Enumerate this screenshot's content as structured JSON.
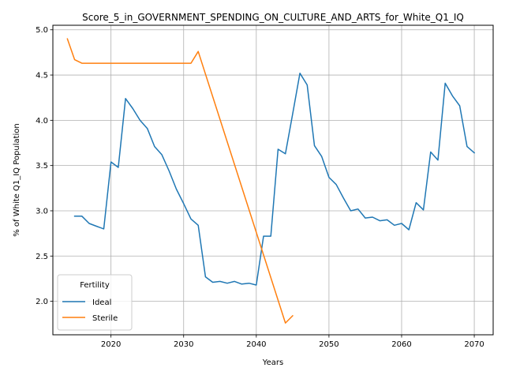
{
  "chart_data": {
    "type": "line",
    "title": "Score_5_in_GOVERNMENT_SPENDING_ON_CULTURE_AND_ARTS_for_White_Q1_IQ",
    "xlabel": "Years",
    "ylabel": "% of White Q1_IQ Population",
    "xlim": [
      2012,
      2072.6
    ],
    "ylim": [
      1.63,
      5.05
    ],
    "xticks": [
      2020,
      2030,
      2040,
      2050,
      2060,
      2070
    ],
    "yticks": [
      2.0,
      2.5,
      3.0,
      3.5,
      4.0,
      4.5,
      5.0
    ],
    "xtick_labels": [
      "2020",
      "2030",
      "2040",
      "2050",
      "2060",
      "2070"
    ],
    "ytick_labels": [
      "2.0",
      "2.5",
      "3.0",
      "3.5",
      "4.0",
      "4.5",
      "5.0"
    ],
    "grid": true,
    "legend": {
      "title": "Fertility",
      "placement": "lower-left"
    },
    "series": [
      {
        "name": "Ideal",
        "color": "#1f77b4",
        "x": [
          2015,
          2016,
          2017,
          2018,
          2019,
          2020,
          2021,
          2022,
          2023,
          2024,
          2025,
          2026,
          2027,
          2028,
          2029,
          2030,
          2031,
          2032,
          2033,
          2034,
          2035,
          2036,
          2037,
          2038,
          2039,
          2040,
          2041,
          2042,
          2043,
          2044,
          2045,
          2046,
          2047,
          2048,
          2049,
          2050,
          2051,
          2052,
          2053,
          2054,
          2055,
          2056,
          2057,
          2058,
          2059,
          2060,
          2061,
          2062,
          2063,
          2064,
          2065,
          2066,
          2067,
          2068,
          2069,
          2070
        ],
        "y": [
          2.94,
          2.94,
          2.86,
          2.83,
          2.8,
          3.54,
          3.48,
          4.24,
          4.13,
          4.0,
          3.91,
          3.71,
          3.62,
          3.44,
          3.24,
          3.08,
          2.91,
          2.84,
          2.27,
          2.21,
          2.22,
          2.2,
          2.22,
          2.19,
          2.2,
          2.18,
          2.72,
          2.72,
          3.68,
          3.63,
          4.07,
          4.52,
          4.39,
          3.72,
          3.6,
          3.37,
          3.29,
          3.14,
          3.0,
          3.02,
          2.92,
          2.93,
          2.89,
          2.9,
          2.84,
          2.86,
          2.79,
          3.09,
          3.01,
          3.65,
          3.56,
          4.41,
          4.27,
          4.16,
          3.71,
          3.64
        ]
      },
      {
        "name": "Sterile",
        "color": "#ff7f0e",
        "x": [
          2014,
          2015,
          2016,
          2017,
          2018,
          2019,
          2020,
          2021,
          2022,
          2023,
          2024,
          2025,
          2026,
          2027,
          2028,
          2029,
          2030,
          2031,
          2032,
          2044,
          2045
        ],
        "y": [
          4.9,
          4.67,
          4.63,
          4.63,
          4.63,
          4.63,
          4.63,
          4.63,
          4.63,
          4.63,
          4.63,
          4.63,
          4.63,
          4.63,
          4.63,
          4.63,
          4.63,
          4.63,
          4.76,
          1.76,
          1.84
        ]
      }
    ]
  }
}
